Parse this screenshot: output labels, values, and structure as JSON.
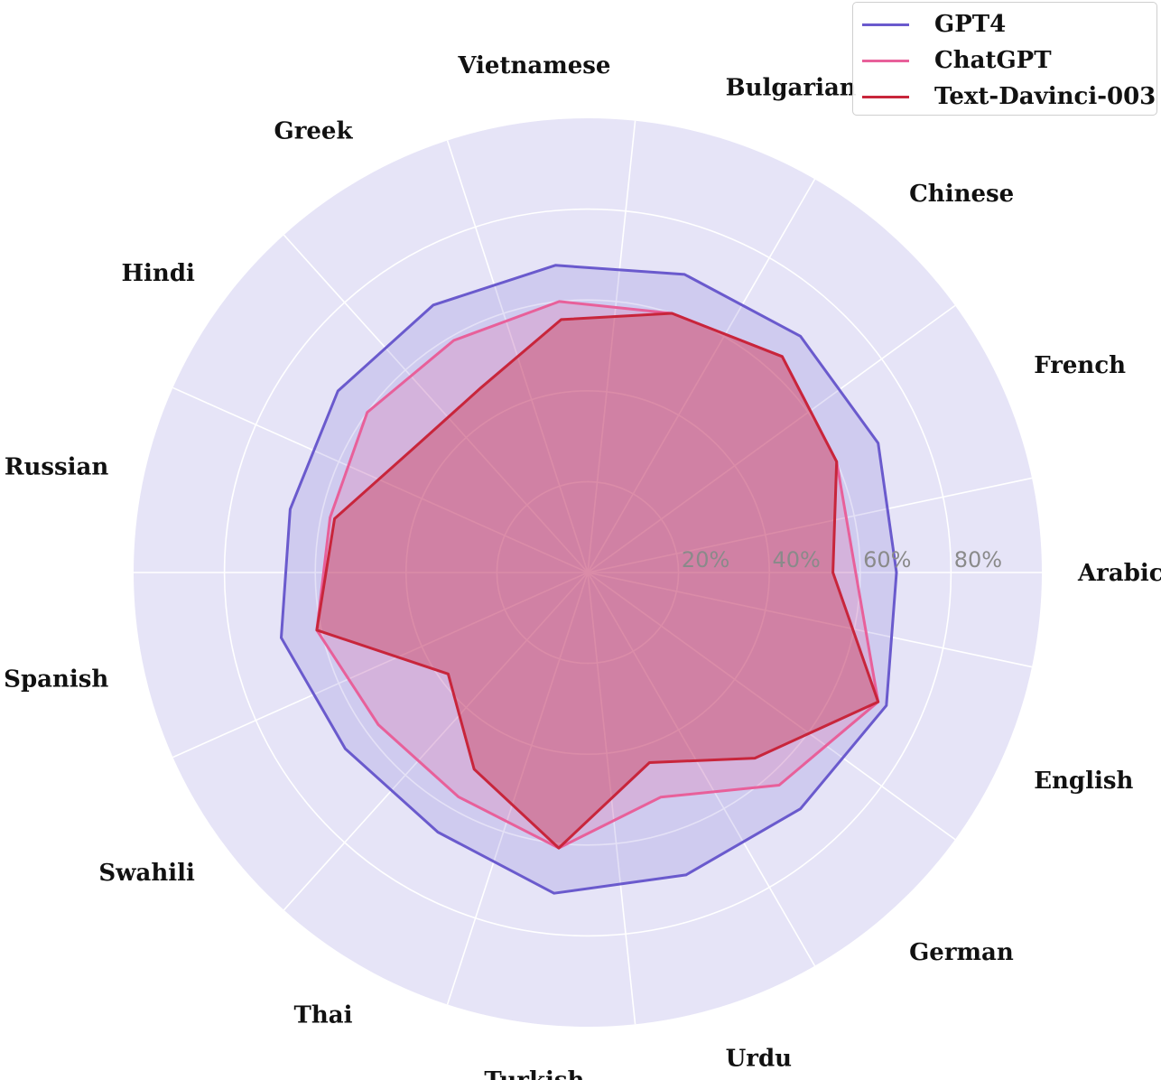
{
  "chart_data": {
    "type": "radar",
    "categories": [
      "Arabic",
      "French",
      "Chinese",
      "Bulgarian",
      "Vietnamese",
      "Greek",
      "Hindi",
      "Russian",
      "Spanish",
      "Swahili",
      "Thai",
      "Turkish",
      "Urdu",
      "German",
      "English"
    ],
    "series": [
      {
        "name": "GPT4",
        "color": "#6a5acd",
        "values": [
          68,
          70,
          70,
          69,
          68,
          68,
          68,
          67,
          69,
          66,
          66,
          71,
          70,
          70,
          72
        ]
      },
      {
        "name": "ChatGPT",
        "color": "#e8609a",
        "values": [
          59,
          60,
          64,
          60,
          60,
          59,
          60,
          58,
          61,
          57,
          57,
          61,
          52,
          63,
          70
        ]
      },
      {
        "name": "Text-Davinci-003",
        "color": "#c8253b",
        "values": [
          54,
          60,
          64,
          60,
          56,
          47,
          47,
          57,
          61,
          38,
          50,
          61,
          44,
          55,
          70
        ]
      }
    ],
    "radial_ticks": [
      "20%",
      "40%",
      "60%",
      "80%"
    ],
    "rlim": [
      0,
      100
    ],
    "grid": true,
    "legend": "top-right"
  }
}
